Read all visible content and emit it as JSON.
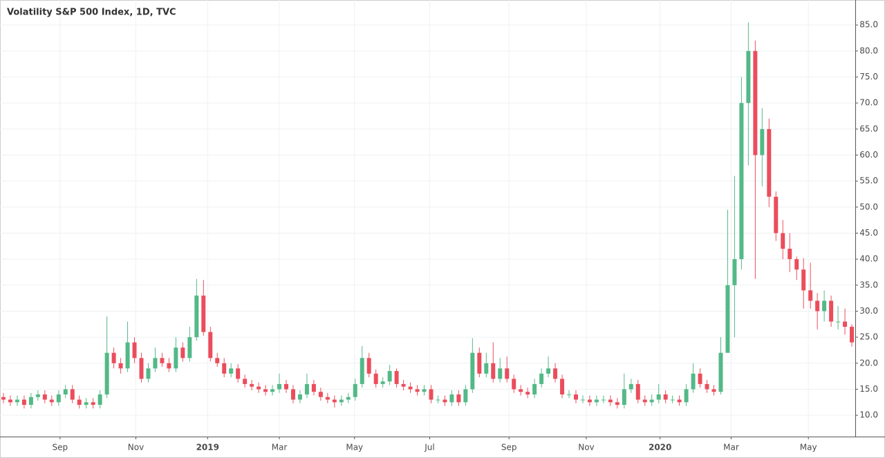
{
  "chart_data": {
    "type": "candlestick",
    "title": "Volatility S&P 500 Index, 1D, TVC",
    "up_color": "#53b987",
    "down_color": "#eb4d5c",
    "grid": true,
    "xlim": [
      0,
      124
    ],
    "xticks": [
      {
        "value": 8.7,
        "label": "Sep"
      },
      {
        "value": 19.7,
        "label": "Nov"
      },
      {
        "value": 30.1,
        "label": "2019"
      },
      {
        "value": 40.5,
        "label": "Mar"
      },
      {
        "value": 51.4,
        "label": "May"
      },
      {
        "value": 62.3,
        "label": "Jul"
      },
      {
        "value": 73.8,
        "label": "Sep"
      },
      {
        "value": 85,
        "label": "Nov"
      },
      {
        "value": 95.7,
        "label": "2020"
      },
      {
        "value": 106,
        "label": "Mar"
      },
      {
        "value": 117.2,
        "label": "May"
      }
    ],
    "ylim": [
      5.9,
      89.8
    ],
    "yticks": [
      {
        "value": 10,
        "label": "10.0"
      },
      {
        "value": 15,
        "label": "15.0"
      },
      {
        "value": 20,
        "label": "20.0"
      },
      {
        "value": 25,
        "label": "25.0"
      },
      {
        "value": 30,
        "label": "30.0"
      },
      {
        "value": 35,
        "label": "35.0"
      },
      {
        "value": 40,
        "label": "40.0"
      },
      {
        "value": 45,
        "label": "45.0"
      },
      {
        "value": 50,
        "label": "50.0"
      },
      {
        "value": 55,
        "label": "55.0"
      },
      {
        "value": 60,
        "label": "60.0"
      },
      {
        "value": 65,
        "label": "65.0"
      },
      {
        "value": 70,
        "label": "70.0"
      },
      {
        "value": 75,
        "label": "75.0"
      },
      {
        "value": 80,
        "label": "80.0"
      },
      {
        "value": 85,
        "label": "85.0"
      }
    ],
    "open": [
      13.5,
      13,
      12.5,
      13,
      12,
      13.5,
      14,
      13,
      12.5,
      14,
      15,
      13,
      12,
      12.5,
      12,
      14,
      22,
      20,
      19,
      24,
      21,
      17,
      19,
      21,
      20,
      19,
      23,
      21,
      25,
      33,
      26,
      21,
      20,
      18,
      19,
      17,
      16,
      15.5,
      15,
      14.5,
      15,
      16,
      15,
      13,
      14,
      16,
      14.5,
      13.5,
      13,
      12.5,
      13,
      13.5,
      16,
      21,
      18,
      16,
      16.5,
      18.5,
      16,
      15.5,
      15,
      14.5,
      15,
      13,
      13,
      12.5,
      14,
      12.5,
      15,
      22,
      18,
      20,
      17,
      19,
      17,
      15,
      14.5,
      14,
      16,
      18,
      19,
      17,
      14,
      14,
      13,
      13,
      12.5,
      13,
      13,
      12.5,
      12,
      15,
      16,
      13,
      12.5,
      13,
      14,
      13,
      13,
      12.5,
      15,
      18,
      16,
      15,
      14.5,
      22,
      35,
      40,
      70,
      80,
      60,
      65,
      52,
      45,
      42,
      40,
      38,
      34,
      32,
      30,
      32,
      28,
      28,
      27
    ],
    "high": [
      14.3,
      13.8,
      13.8,
      13.8,
      14.3,
      14.8,
      14.8,
      13.8,
      14.8,
      15.8,
      15.8,
      13.8,
      13.3,
      13.3,
      14.8,
      29,
      23,
      21,
      28,
      25,
      22,
      20,
      23,
      22,
      21,
      25,
      24,
      27,
      36.2,
      36,
      27,
      22,
      21,
      20,
      19.8,
      17.8,
      16.8,
      16.3,
      15.8,
      15.8,
      18,
      16.8,
      15.8,
      14.8,
      18,
      16.8,
      15.3,
      14.3,
      13.8,
      13.8,
      14.3,
      17,
      23.3,
      22,
      18.8,
      17.3,
      19.7,
      19,
      16.8,
      16.3,
      15.8,
      15.8,
      15.8,
      13.8,
      13.8,
      14.8,
      14.8,
      15.8,
      24.8,
      23,
      22,
      24,
      21,
      21.3,
      17.8,
      15.8,
      15.3,
      17,
      19,
      21.3,
      20,
      17.8,
      14.8,
      14.8,
      13.8,
      13.8,
      13.8,
      13.8,
      13.8,
      13.3,
      18,
      17,
      16.8,
      13.8,
      14,
      16,
      14.8,
      13.8,
      13.8,
      16,
      20,
      19,
      16.8,
      15.8,
      25,
      49.5,
      56,
      75,
      85.5,
      82,
      69,
      67,
      53,
      47.5,
      45,
      40.5,
      40.2,
      39.3,
      33.5,
      34,
      33,
      31,
      30.5,
      27.5
    ],
    "low": [
      12.3,
      11.8,
      11.8,
      11.3,
      11.3,
      12.8,
      12.3,
      11.8,
      11.8,
      13.3,
      12.3,
      11.3,
      11.3,
      11.3,
      11.3,
      13.3,
      19,
      18,
      18.3,
      20,
      16.3,
      16.3,
      18.3,
      19.3,
      18.3,
      18.3,
      20.3,
      20.3,
      24.3,
      25.3,
      20.3,
      19.3,
      17.3,
      17.3,
      16.3,
      15.3,
      14.8,
      14.3,
      13.8,
      13.8,
      14.3,
      14.3,
      12.3,
      12.3,
      13.3,
      13.8,
      12.8,
      12.3,
      11.5,
      11.8,
      12.3,
      12.8,
      15.3,
      17.3,
      15.3,
      15.3,
      15.8,
      15.3,
      14.8,
      14.3,
      13.8,
      13.8,
      12.3,
      12.3,
      11.8,
      11.8,
      11.8,
      11.8,
      14.3,
      17.3,
      17.3,
      16.3,
      16.3,
      16.3,
      14.3,
      13.8,
      13.3,
      13.3,
      15.3,
      17.3,
      16.3,
      13.3,
      13.3,
      12.3,
      12.3,
      11.8,
      11.8,
      12.3,
      11.8,
      11.3,
      11.3,
      14.3,
      12.3,
      11.8,
      11.8,
      12.3,
      12.3,
      12.3,
      11.8,
      11.8,
      14.3,
      15.3,
      14.3,
      13.8,
      14,
      22,
      25,
      38,
      58,
      36.2,
      54,
      50,
      43.5,
      40,
      37.5,
      36,
      30.5,
      30.5,
      26.5,
      28,
      27,
      26.5,
      25.5,
      23.2
    ],
    "close": [
      13,
      12.5,
      13,
      12,
      13.5,
      14,
      13,
      12.5,
      14,
      15,
      13,
      12,
      12.5,
      12,
      14,
      22,
      20,
      19,
      24,
      21,
      17,
      19,
      21,
      20,
      19,
      23,
      21,
      25,
      33,
      26,
      21,
      20,
      18,
      19,
      17,
      16,
      15.5,
      15,
      14.5,
      15,
      16,
      15,
      13,
      14,
      16,
      14.5,
      13.5,
      13,
      12.5,
      13,
      13.5,
      16,
      21,
      18,
      16,
      16.5,
      18.5,
      16,
      15.5,
      15,
      14.5,
      15,
      13,
      13,
      12.5,
      14,
      12.5,
      15,
      22,
      18,
      20,
      17,
      19,
      17,
      15,
      14.5,
      14,
      16,
      18,
      19,
      17,
      14,
      14,
      13,
      13,
      12.5,
      13,
      13,
      12.5,
      12,
      15,
      16,
      13,
      12.5,
      13,
      14,
      13,
      13,
      12.5,
      15,
      18,
      16,
      15,
      14.5,
      22,
      35,
      40,
      70,
      80,
      60,
      65,
      52,
      45,
      42,
      40,
      38,
      34,
      32,
      30,
      32,
      28,
      28,
      27,
      24
    ]
  }
}
